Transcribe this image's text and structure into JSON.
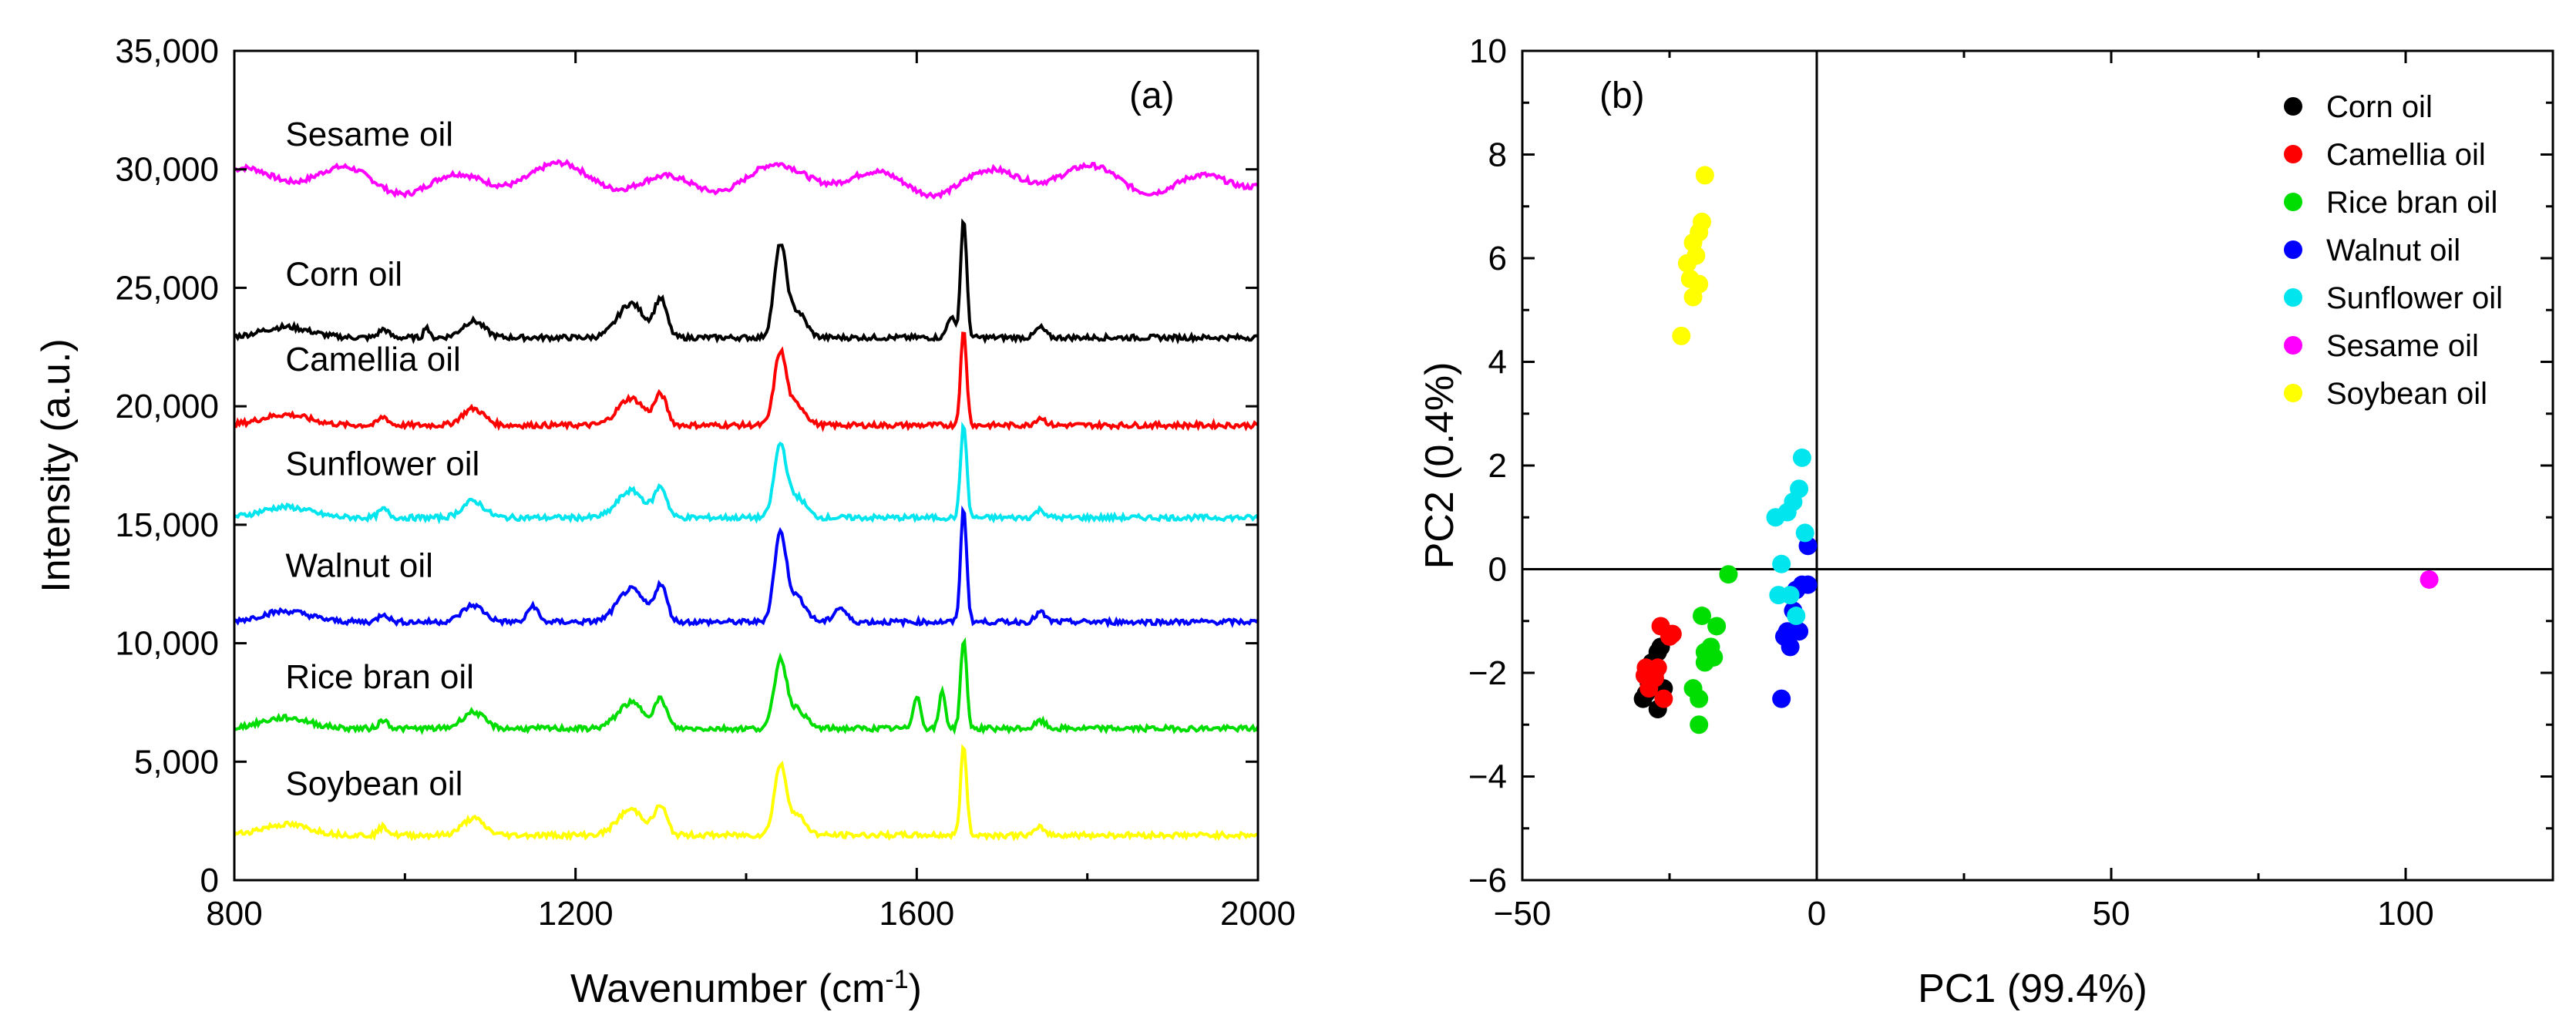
{
  "chart_data": [
    {
      "type": "line",
      "panel_label": "(a)",
      "title": "",
      "xlabel": "Wavenumber (cm",
      "xlabel_sup": "-1",
      "xlabel_close": ")",
      "ylabel": "Intensity (a.u.)",
      "xlim": [
        800,
        2000
      ],
      "ylim": [
        0,
        35000
      ],
      "x_ticks": [
        800,
        1200,
        1600,
        2000
      ],
      "x_tick_labels": [
        "800",
        "1200",
        "1600",
        "2000"
      ],
      "y_ticks": [
        0,
        5000,
        10000,
        15000,
        20000,
        25000,
        30000,
        35000
      ],
      "y_tick_labels": [
        "0",
        "5,000",
        "10,000",
        "15,000",
        "20,000",
        "25,000",
        "30,000",
        "35,000"
      ],
      "peak_shape": [
        [
          1265,
          1200,
          22
        ],
        [
          1300,
          1300,
          10
        ],
        [
          1440,
          3200,
          10
        ],
        [
          1460,
          900,
          14
        ],
        [
          1655,
          4200,
          5
        ],
        [
          1745,
          350,
          8
        ]
      ],
      "series": [
        {
          "name": "Sesame oil",
          "label": "Sesame oil",
          "color": "#FF00FF",
          "baseline": 29200,
          "label_y": 31000,
          "label_x": 860,
          "wavy": true,
          "amplitude": 800
        },
        {
          "name": "Corn oil",
          "label": "Corn oil",
          "color": "#000000",
          "baseline": 22900,
          "label_y": 25100,
          "label_x": 860,
          "scale": 1.2,
          "extra_peaks": [
            [
              1640,
              900,
              6
            ],
            [
              1025,
              500,
              4
            ]
          ]
        },
        {
          "name": "Camellia oil",
          "label": "Camellia oil",
          "color": "#FF0000",
          "baseline": 19200,
          "label_y": 21500,
          "label_x": 860,
          "scale": 0.95
        },
        {
          "name": "Sunflower oil",
          "label": "Sunflower oil",
          "color": "#00E5EE",
          "baseline": 15300,
          "label_y": 17100,
          "label_x": 860,
          "scale": 0.95
        },
        {
          "name": "Walnut oil",
          "label": "Walnut oil",
          "color": "#0000FF",
          "baseline": 10900,
          "label_y": 12800,
          "label_x": 860,
          "scale": 1.15,
          "extra_peaks": [
            [
              1150,
              700,
              8
            ],
            [
              1510,
              600,
              10
            ]
          ]
        },
        {
          "name": "Rice bran oil",
          "label": "Rice bran oil",
          "color": "#00DD00",
          "baseline": 6400,
          "label_y": 8100,
          "label_x": 860,
          "scale": 0.9,
          "extra_peaks": [
            [
              1600,
              1400,
              6
            ],
            [
              1630,
              1600,
              5
            ]
          ]
        },
        {
          "name": "Soybean oil",
          "label": "Soybean oil",
          "color": "#FFFF00",
          "baseline": 1900,
          "label_y": 3600,
          "label_x": 860,
          "scale": 0.9
        }
      ]
    },
    {
      "type": "scatter",
      "panel_label": "(b)",
      "title": "",
      "xlabel": "PC1 (99.4%)",
      "ylabel": "PC2 (0.4%)",
      "xlim": [
        -50,
        125
      ],
      "ylim": [
        -6,
        10
      ],
      "x_ticks": [
        -50,
        0,
        50,
        100
      ],
      "x_tick_labels": [
        "−50",
        "0",
        "50",
        "100"
      ],
      "y_ticks": [
        -6,
        -4,
        -2,
        0,
        2,
        4,
        6,
        8,
        10
      ],
      "y_tick_labels": [
        "−6",
        "−4",
        "−2",
        "0",
        "2",
        "4",
        "6",
        "8",
        "10"
      ],
      "legend_position": "top-right",
      "series": [
        {
          "name": "Corn oil",
          "color": "#000000",
          "points": [
            [
              -29,
              -2.4
            ],
            [
              -28.5,
              -2.2
            ],
            [
              -28,
              -1.8
            ],
            [
              -27,
              -2.7
            ],
            [
              -26.5,
              -1.5
            ],
            [
              -27.5,
              -2.0
            ],
            [
              -29.5,
              -2.5
            ],
            [
              -26,
              -2.3
            ],
            [
              -28,
              -1.95
            ],
            [
              -27,
              -1.6
            ]
          ]
        },
        {
          "name": "Camellia oil",
          "color": "#FF0000",
          "points": [
            [
              -29,
              -1.9
            ],
            [
              -28,
              -2.0
            ],
            [
              -27.5,
              -2.1
            ],
            [
              -26,
              -2.5
            ],
            [
              -25,
              -1.3
            ],
            [
              -26.5,
              -1.1
            ],
            [
              -24.5,
              -1.25
            ],
            [
              -28.5,
              -2.3
            ],
            [
              -27,
              -1.9
            ],
            [
              -29.2,
              -2.05
            ]
          ]
        },
        {
          "name": "Rice bran oil",
          "color": "#00DD00",
          "points": [
            [
              -21,
              -2.3
            ],
            [
              -20,
              -2.5
            ],
            [
              -20,
              -3.0
            ],
            [
              -19,
              -1.6
            ],
            [
              -18,
              -1.5
            ],
            [
              -17.5,
              -1.7
            ],
            [
              -19.5,
              -0.9
            ],
            [
              -17,
              -1.1
            ],
            [
              -15,
              -0.1
            ],
            [
              -19,
              -1.8
            ]
          ]
        },
        {
          "name": "Walnut oil",
          "color": "#0000FF",
          "points": [
            [
              -6,
              -2.5
            ],
            [
              -4.5,
              -1.5
            ],
            [
              -5,
              -1.2
            ],
            [
              -3.5,
              -0.4
            ],
            [
              -2.5,
              -0.3
            ],
            [
              -1.5,
              -0.3
            ],
            [
              -1.5,
              0.45
            ],
            [
              -4,
              -0.8
            ],
            [
              -3,
              -1.2
            ],
            [
              -5.5,
              -1.3
            ]
          ]
        },
        {
          "name": "Sunflower oil",
          "color": "#00E5EE",
          "points": [
            [
              -7,
              1.0
            ],
            [
              -5,
              1.1
            ],
            [
              -4,
              1.3
            ],
            [
              -3,
              1.55
            ],
            [
              -2.5,
              2.15
            ],
            [
              -2,
              0.7
            ],
            [
              -6,
              0.1
            ],
            [
              -6.5,
              -0.5
            ],
            [
              -4.5,
              -0.5
            ],
            [
              -3.5,
              -0.9
            ]
          ]
        },
        {
          "name": "Sesame oil",
          "color": "#FF00FF",
          "points": [
            [
              104,
              -0.2
            ]
          ]
        },
        {
          "name": "Soybean oil",
          "color": "#FFFF00",
          "points": [
            [
              -23,
              4.5
            ],
            [
              -21,
              5.25
            ],
            [
              -20,
              5.5
            ],
            [
              -21.5,
              5.6
            ],
            [
              -22,
              5.9
            ],
            [
              -20.5,
              6.05
            ],
            [
              -21,
              6.3
            ],
            [
              -20,
              6.5
            ],
            [
              -19.5,
              6.7
            ],
            [
              -19,
              7.6
            ]
          ]
        }
      ]
    }
  ]
}
